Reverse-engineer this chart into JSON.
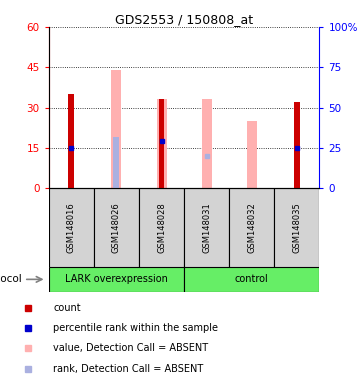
{
  "title": "GDS2553 / 150808_at",
  "samples": [
    "GSM148016",
    "GSM148026",
    "GSM148028",
    "GSM148031",
    "GSM148032",
    "GSM148035"
  ],
  "count_values": [
    35,
    0,
    33,
    0,
    0,
    32
  ],
  "absent_value_values": [
    0,
    44,
    33,
    33,
    25,
    0
  ],
  "absent_rank_values": [
    0,
    32,
    0,
    0,
    0,
    0
  ],
  "blue_marker_values": [
    25,
    0,
    29,
    0,
    0,
    25
  ],
  "blue_absent_values": [
    0,
    0,
    0,
    20,
    0,
    0
  ],
  "ylim_left": [
    0,
    60
  ],
  "ylim_right": [
    0,
    100
  ],
  "yticks_left": [
    0,
    15,
    30,
    45,
    60
  ],
  "yticks_right": [
    0,
    25,
    50,
    75,
    100
  ],
  "ytick_labels_right": [
    "0",
    "25",
    "50",
    "75",
    "100%"
  ],
  "bar_color_red": "#cc0000",
  "bar_color_pink": "#ffb0b0",
  "bar_color_blue": "#0000cc",
  "bar_color_light_blue": "#aab0e0",
  "group_label_lark": "LARK overexpression",
  "group_label_control": "control",
  "group_bg_color": "#66ee66",
  "sample_bg_color": "#d3d3d3",
  "legend_items": [
    {
      "color": "#cc0000",
      "label": "count"
    },
    {
      "color": "#0000cc",
      "label": "percentile rank within the sample"
    },
    {
      "color": "#ffb0b0",
      "label": "value, Detection Call = ABSENT"
    },
    {
      "color": "#aab0e0",
      "label": "rank, Detection Call = ABSENT"
    }
  ]
}
